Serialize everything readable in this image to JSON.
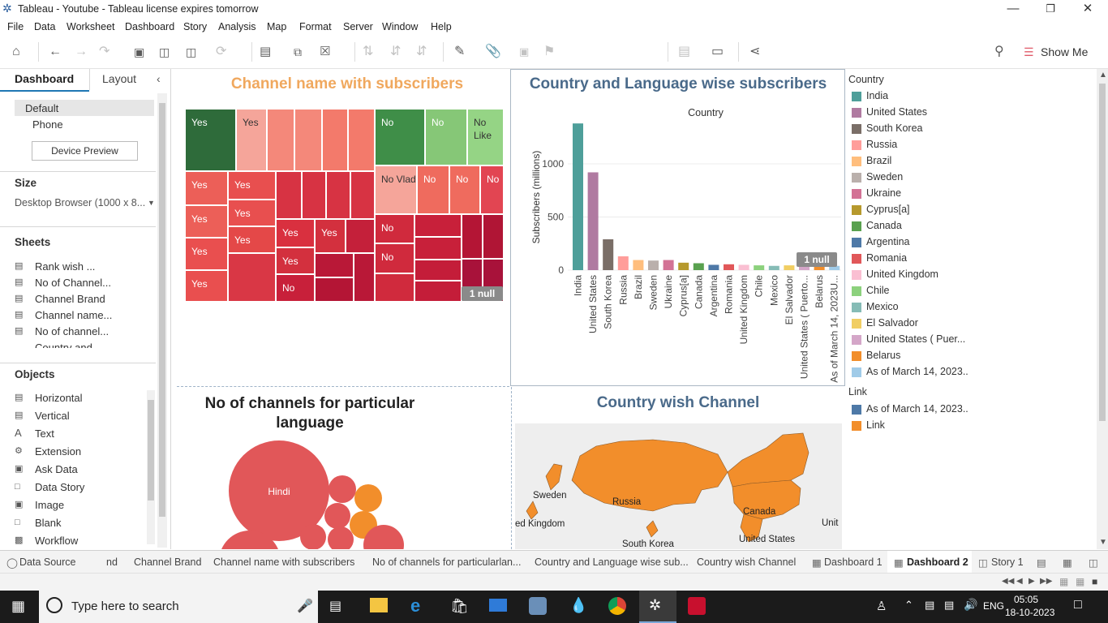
{
  "window": {
    "title": "Tableau - Youtube - Tableau license expires tomorrow"
  },
  "menu": [
    "File",
    "Data",
    "Worksheet",
    "Dashboard",
    "Story",
    "Analysis",
    "Map",
    "Format",
    "Server",
    "Window",
    "Help"
  ],
  "toolbar": {
    "show_me": "Show Me"
  },
  "left_pane": {
    "tabs": {
      "dashboard": "Dashboard",
      "layout": "Layout"
    },
    "device": {
      "default": "Default",
      "phone": "Phone",
      "preview_button": "Device Preview"
    },
    "size": {
      "heading": "Size",
      "value": "Desktop Browser (1000 x 8..."
    },
    "sheets": {
      "heading": "Sheets",
      "items": [
        "Rank wish ...",
        "No of Channel...",
        "Channel Brand",
        "Channel name...",
        "No of channel...",
        "Country and..."
      ]
    },
    "objects": {
      "heading": "Objects",
      "items": [
        "Horizontal",
        "Vertical",
        "Text",
        "Extension",
        "Ask Data",
        "Data Story",
        "Image",
        "Blank",
        "Workflow"
      ]
    }
  },
  "treemap": {
    "title": "Channel name with subscribers",
    "null_badge": "1 null",
    "labels": [
      "Yes",
      "Yes",
      "No",
      "No",
      "No Like",
      "Yes",
      "Yes",
      "No Vlad",
      "No",
      "No",
      "No",
      "Yes",
      "Yes",
      "Yes",
      "Yes",
      "Yes",
      "Yes",
      "Yes",
      "Yes",
      "No",
      "No",
      "No"
    ]
  },
  "chart_data": {
    "type": "bar",
    "title": "Country and Language wise subscribers",
    "column_header": "Country",
    "ylabel": "Subscribers (millions)",
    "yticks": [
      "0",
      "500",
      "1000"
    ],
    "ylim": [
      0,
      1450
    ],
    "categories": [
      "India",
      "United States",
      "South Korea",
      "Russia",
      "Brazil",
      "Sweden",
      "Ukraine",
      "Cyprus[a]",
      "Canada",
      "Argentina",
      "Romania",
      "United Kingdom",
      "Chile",
      "Mexico",
      "El Salvador",
      "United States ( Puerto...",
      "Belarus",
      "As of March 14, 2023U..."
    ],
    "values": [
      1380,
      920,
      290,
      130,
      95,
      90,
      95,
      70,
      65,
      50,
      55,
      50,
      45,
      40,
      45,
      40,
      40,
      40
    ],
    "colors": [
      "#4e9f9a",
      "#b07aa1",
      "#7a6e67",
      "#ff9d9a",
      "#ffbe7d",
      "#bab0ac",
      "#d37295",
      "#b6992d",
      "#59a14f",
      "#4e79a7",
      "#e15759",
      "#fabfd2",
      "#8cd17d",
      "#86bcb6",
      "#f1ce63",
      "#d4a6c8",
      "#f28e2b",
      "#a0cbe8"
    ],
    "null_badge": "1 null"
  },
  "legend": {
    "country_heading": "Country",
    "countries": [
      "India",
      "United States",
      "South Korea",
      "Russia",
      "Brazil",
      "Sweden",
      "Ukraine",
      "Cyprus[a]",
      "Canada",
      "Argentina",
      "Romania",
      "United Kingdom",
      "Chile",
      "Mexico",
      "El Salvador",
      "United States ( Puer...",
      "Belarus",
      "As of March 14, 2023.."
    ],
    "link_heading": "Link",
    "links": [
      "As of March 14, 2023..",
      "Link"
    ],
    "link_colors": [
      "#4e79a7",
      "#f28e2b"
    ]
  },
  "bubble": {
    "title_line1": "No of channels for particular",
    "title_line2": "language",
    "hindi_label": "Hindi"
  },
  "map": {
    "title": "Country wish Channel",
    "labels": {
      "sweden": "Sweden",
      "russia": "Russia",
      "kingdom": "ed Kingdom",
      "skorea": "South Korea",
      "canada": "Canada",
      "us": "United States",
      "unit": "Unit"
    }
  },
  "sheet_tabs": [
    "Data Source",
    "nd",
    "Channel Brand",
    "Channel name with subscribers",
    "No of channels for particularlan...",
    "Country and Language wise sub...",
    "Country wish Channel",
    "Dashboard 1",
    "Dashboard 2",
    "Story 1"
  ],
  "taskbar": {
    "search_placeholder": "Type here to search",
    "lang": "ENG",
    "time": "05:05",
    "date": "18-10-2023"
  }
}
